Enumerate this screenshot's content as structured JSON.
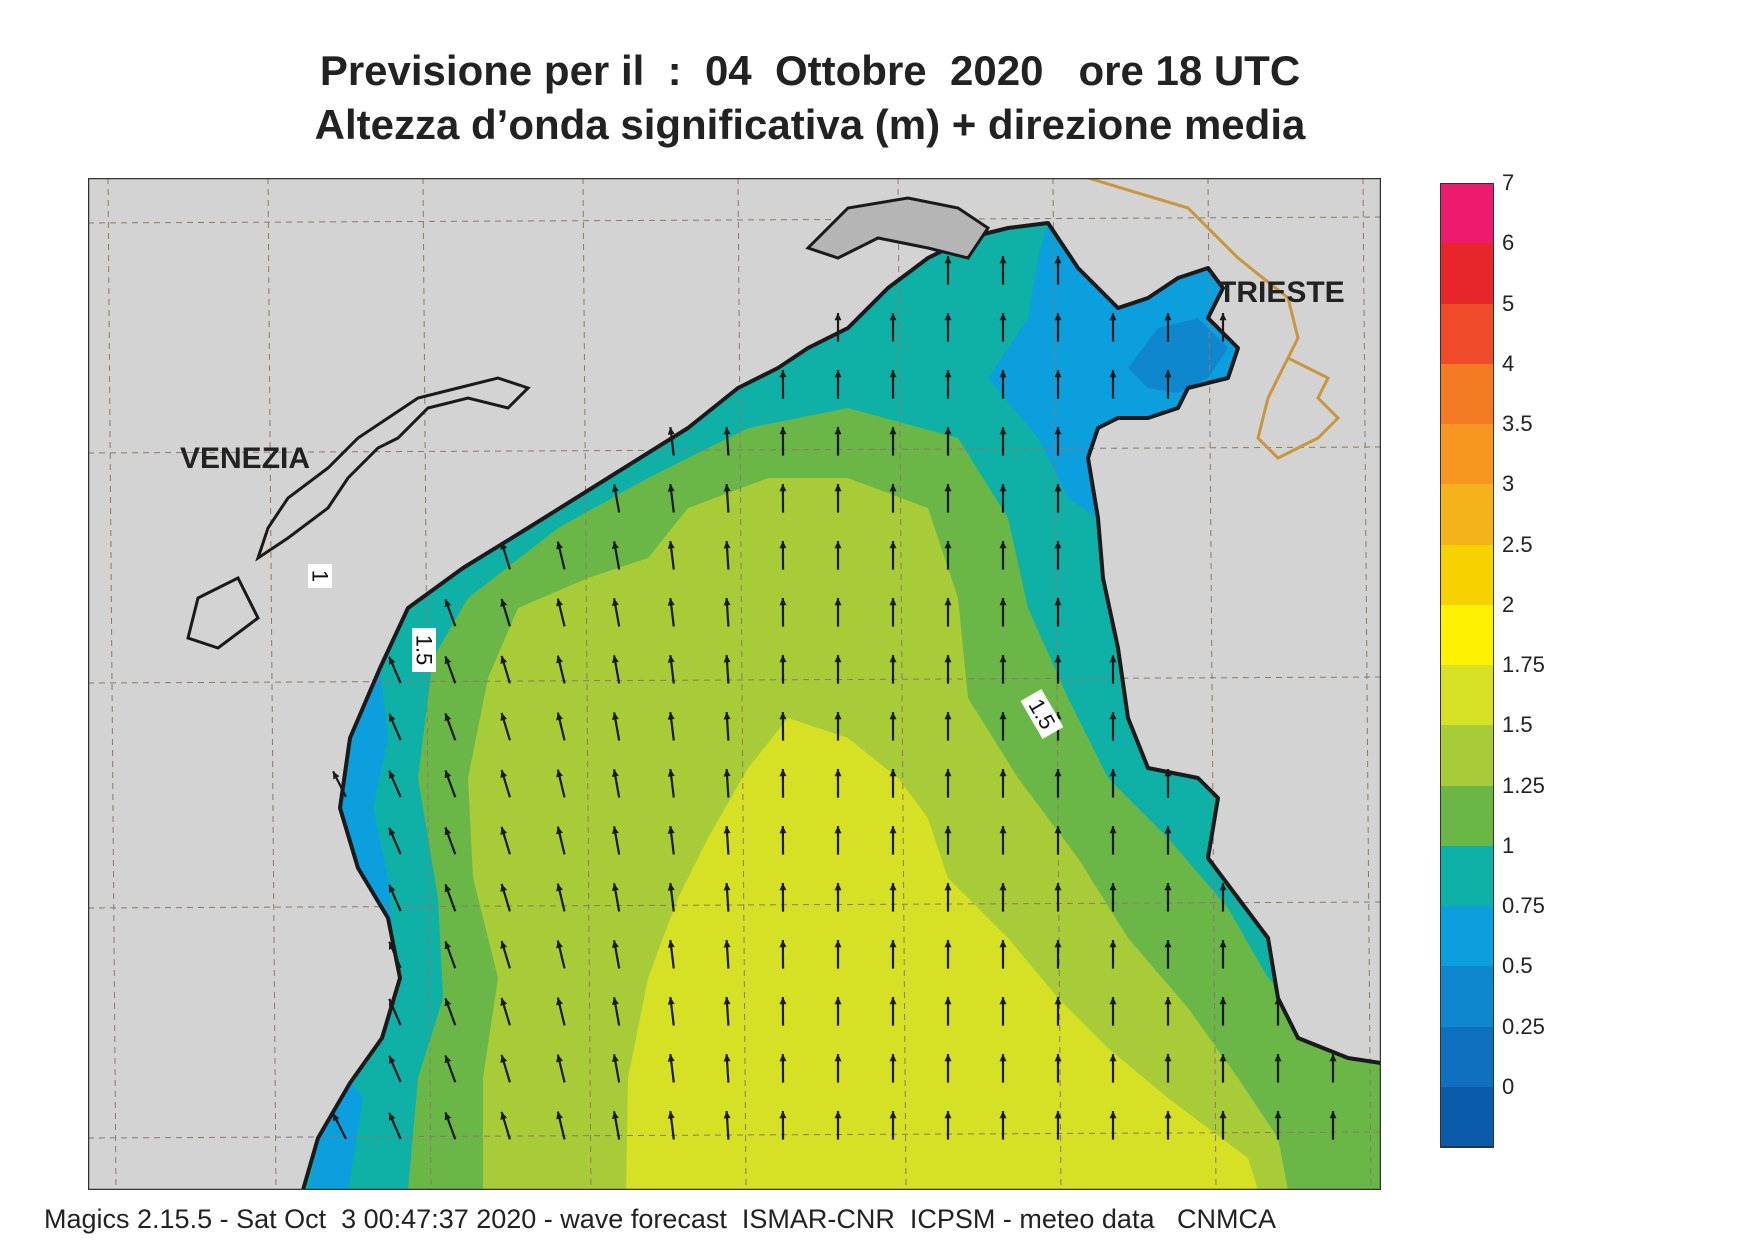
{
  "header": {
    "title_line1": "Previsione per il  :  04  Ottobre  2020   ore 18 UTC",
    "title_line2": "Altezza d’onda significativa (m) + direzione media"
  },
  "map": {
    "region": "Northern Adriatic Sea",
    "cities": [
      {
        "name": "VENEZIA"
      },
      {
        "name": "TRIESTE"
      }
    ],
    "contour_labels": [
      "1",
      "1.5",
      "1.5"
    ],
    "wave_direction": "arrows pointing toward north / north-west",
    "land_color": "#d3d3d3"
  },
  "legend": {
    "unit": "m",
    "ticks": [
      "7",
      "6",
      "5",
      "4",
      "3.5",
      "3",
      "2.5",
      "2",
      "1.75",
      "1.5",
      "1.25",
      "1",
      "0.75",
      "0.5",
      "0.25",
      "0"
    ],
    "colors": [
      "#ee1a6e",
      "#e7252a",
      "#ef4a2a",
      "#f47b24",
      "#f79621",
      "#f6b21b",
      "#f8d200",
      "#fff200",
      "#d6e024",
      "#a8cb38",
      "#6ab646",
      "#0fb0a5",
      "#0b9fdd",
      "#0f87cf",
      "#0e70be",
      "#0a5cab"
    ]
  },
  "footer": {
    "text": "Magics 2.15.5 - Sat Oct  3 00:47:37 2020 - wave forecast  ISMAR-CNR  ICPSM - meteo data   CNMCA"
  }
}
